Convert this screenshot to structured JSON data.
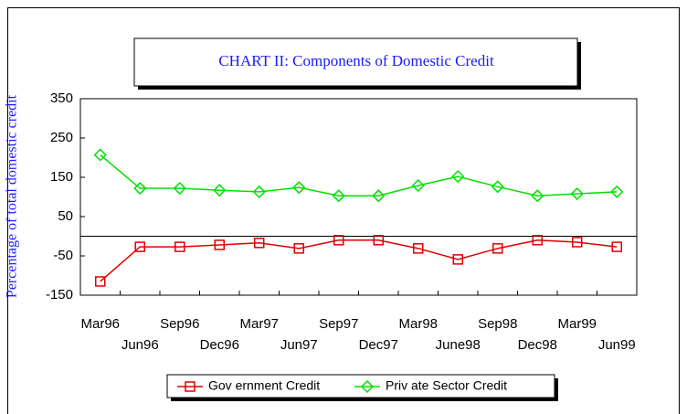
{
  "chart_data": {
    "type": "line",
    "title": "CHART II: Components of Domestic Credit",
    "y_label": "Percentage of total domestic credit",
    "categories": [
      "Mar96",
      "Jun96",
      "Sep96",
      "Dec96",
      "Mar97",
      "Jun97",
      "Sep97",
      "Dec97",
      "Mar98",
      "June98",
      "Sep98",
      "Dec98",
      "Mar99",
      "Jun99"
    ],
    "series": [
      {
        "name": "Gov ernment Credit",
        "color": "#e00000",
        "marker": "square",
        "values": [
          -115,
          -27,
          -27,
          -22,
          -17,
          -31,
          -10,
          -10,
          -31,
          -59,
          -31,
          -10,
          -15,
          -27
        ]
      },
      {
        "name": "Priv ate Sector Credit",
        "color": "#00e000",
        "marker": "diamond",
        "values": [
          207,
          122,
          122,
          117,
          113,
          124,
          103,
          103,
          129,
          152,
          126,
          103,
          108,
          113
        ]
      }
    ],
    "ylim": [
      -150,
      350
    ],
    "yticks": [
      -150,
      -50,
      50,
      150,
      250,
      350
    ],
    "grid": false,
    "legend": "bottom"
  }
}
